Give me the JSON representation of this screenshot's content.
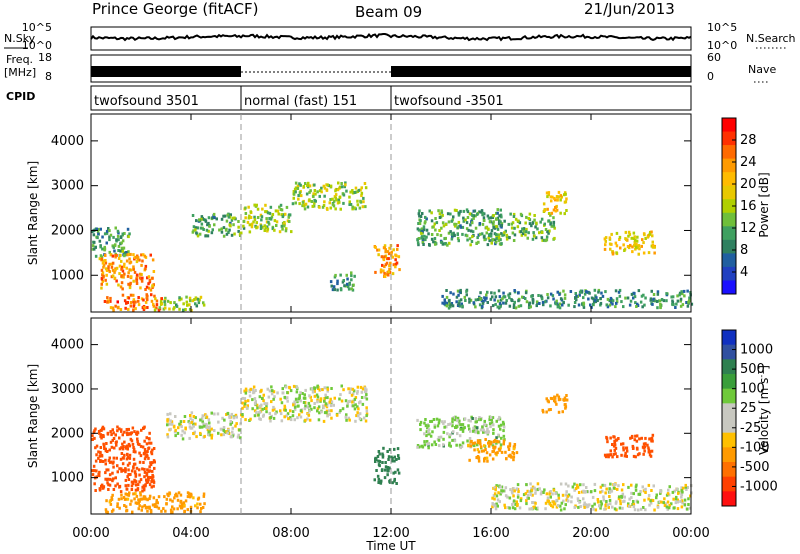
{
  "header": {
    "title": "Prince George (fitACF)",
    "beam": "Beam 09",
    "date": "21/Jun/2013"
  },
  "meta_rows": {
    "nsky_label": "N.Sky",
    "nsky_ticks": [
      "10^5",
      "10^0"
    ],
    "nsearch_label": "N.Search",
    "nsearch_ticks": [
      "10^5",
      "10^0"
    ],
    "freq_label": "Freq.",
    "freq_unit": "[MHz]",
    "freq_ticks": [
      "18",
      "8"
    ],
    "nave_label": "Nave",
    "nave_ticks": [
      "60",
      "0"
    ],
    "cpid_label": "CPID"
  },
  "cpid_segments": [
    {
      "label": "twofsound 3501",
      "start_hour": 0,
      "end_hour": 6
    },
    {
      "label": "normal (fast) 151",
      "start_hour": 6,
      "end_hour": 12
    },
    {
      "label": "twofsound -3501",
      "start_hour": 12,
      "end_hour": 24
    }
  ],
  "time_axis": {
    "label": "Time UT",
    "range_hours": [
      0,
      24
    ],
    "ticks": [
      "00:00",
      "04:00",
      "08:00",
      "12:00",
      "16:00",
      "20:00",
      "00:00"
    ]
  },
  "range_axis": {
    "label": "Slant Range [km]",
    "ylim": [
      180,
      4600
    ],
    "ticks": [
      "1000",
      "2000",
      "3000",
      "4000"
    ]
  },
  "power_colorbar": {
    "label": "Power [dB]",
    "ticks": [
      "28",
      "24",
      "20",
      "16",
      "12",
      "8",
      "4"
    ],
    "colors": [
      "#ff0000",
      "#ff3000",
      "#ff6a00",
      "#ff9a00",
      "#ffbb00",
      "#e8c800",
      "#b0d000",
      "#6fbf3b",
      "#3fa060",
      "#2f8060",
      "#205fa0",
      "#2040c0",
      "#1a10ff"
    ]
  },
  "velocity_colorbar": {
    "label": "Velocity [m s",
    "label_sup": "-1",
    "label_close": "]",
    "ticks": [
      "1000",
      "500",
      "100",
      "25",
      "-25",
      "-100",
      "-500",
      "-1000"
    ],
    "colors": [
      "#1030c0",
      "#3050a0",
      "#2f8050",
      "#3a9e3a",
      "#6fc93a",
      "#c8c8c0",
      "#c8c8c0",
      "#ffc000",
      "#ff9a00",
      "#ff7000",
      "#ff4000",
      "#ff1010"
    ]
  },
  "chart_data": [
    {
      "type": "heatmap",
      "name": "power",
      "xlabel": "Time UT",
      "ylabel": "Slant Range [km]",
      "xlim": [
        0,
        24
      ],
      "ylim": [
        180,
        4600
      ],
      "regions": [
        {
          "t": [
            0,
            1.5
          ],
          "r": [
            1400,
            2100
          ],
          "v": 10
        },
        {
          "t": [
            0.3,
            2.5
          ],
          "r": [
            700,
            1500
          ],
          "v": 24
        },
        {
          "t": [
            0.5,
            2.8
          ],
          "r": [
            250,
            600
          ],
          "v": 26
        },
        {
          "t": [
            2.5,
            4.5
          ],
          "r": [
            250,
            550
          ],
          "v": 14
        },
        {
          "t": [
            4,
            6
          ],
          "r": [
            1900,
            2400
          ],
          "v": 11
        },
        {
          "t": [
            6,
            8
          ],
          "r": [
            2000,
            2600
          ],
          "v": 14
        },
        {
          "t": [
            8,
            11
          ],
          "r": [
            2500,
            3100
          ],
          "v": 15
        },
        {
          "t": [
            9.5,
            10.5
          ],
          "r": [
            700,
            1100
          ],
          "v": 9
        },
        {
          "t": [
            11.3,
            12.3
          ],
          "r": [
            1000,
            1700
          ],
          "v": 24
        },
        {
          "t": [
            13,
            16.5
          ],
          "r": [
            1700,
            2500
          ],
          "v": 11
        },
        {
          "t": [
            16,
            18.5
          ],
          "r": [
            1800,
            2400
          ],
          "v": 12
        },
        {
          "t": [
            18,
            19
          ],
          "r": [
            2400,
            2900
          ],
          "v": 20
        },
        {
          "t": [
            20.5,
            22.5
          ],
          "r": [
            1500,
            2000
          ],
          "v": 20
        },
        {
          "t": [
            14,
            24
          ],
          "r": [
            300,
            700
          ],
          "v": 9
        }
      ]
    },
    {
      "type": "heatmap",
      "name": "velocity",
      "xlabel": "Time UT",
      "ylabel": "Slant Range [km]",
      "xlim": [
        0,
        24
      ],
      "ylim": [
        180,
        4600
      ],
      "regions": [
        {
          "t": [
            0,
            2.5
          ],
          "r": [
            700,
            2200
          ],
          "v": -600
        },
        {
          "t": [
            0.5,
            4.5
          ],
          "r": [
            250,
            700
          ],
          "v": -150
        },
        {
          "t": [
            3,
            6
          ],
          "r": [
            1900,
            2500
          ],
          "v": 0
        },
        {
          "t": [
            6,
            11
          ],
          "r": [
            2300,
            3100
          ],
          "v": 0
        },
        {
          "t": [
            11.3,
            12.3
          ],
          "r": [
            900,
            1700
          ],
          "v": 200
        },
        {
          "t": [
            13,
            16.5
          ],
          "r": [
            1700,
            2400
          ],
          "v": 50
        },
        {
          "t": [
            15,
            17
          ],
          "r": [
            1400,
            1900
          ],
          "v": -150
        },
        {
          "t": [
            18,
            19
          ],
          "r": [
            2500,
            2900
          ],
          "v": -200
        },
        {
          "t": [
            20.5,
            22.5
          ],
          "r": [
            1500,
            2000
          ],
          "v": -600
        },
        {
          "t": [
            16,
            24
          ],
          "r": [
            300,
            900
          ],
          "v": 0
        }
      ]
    }
  ]
}
